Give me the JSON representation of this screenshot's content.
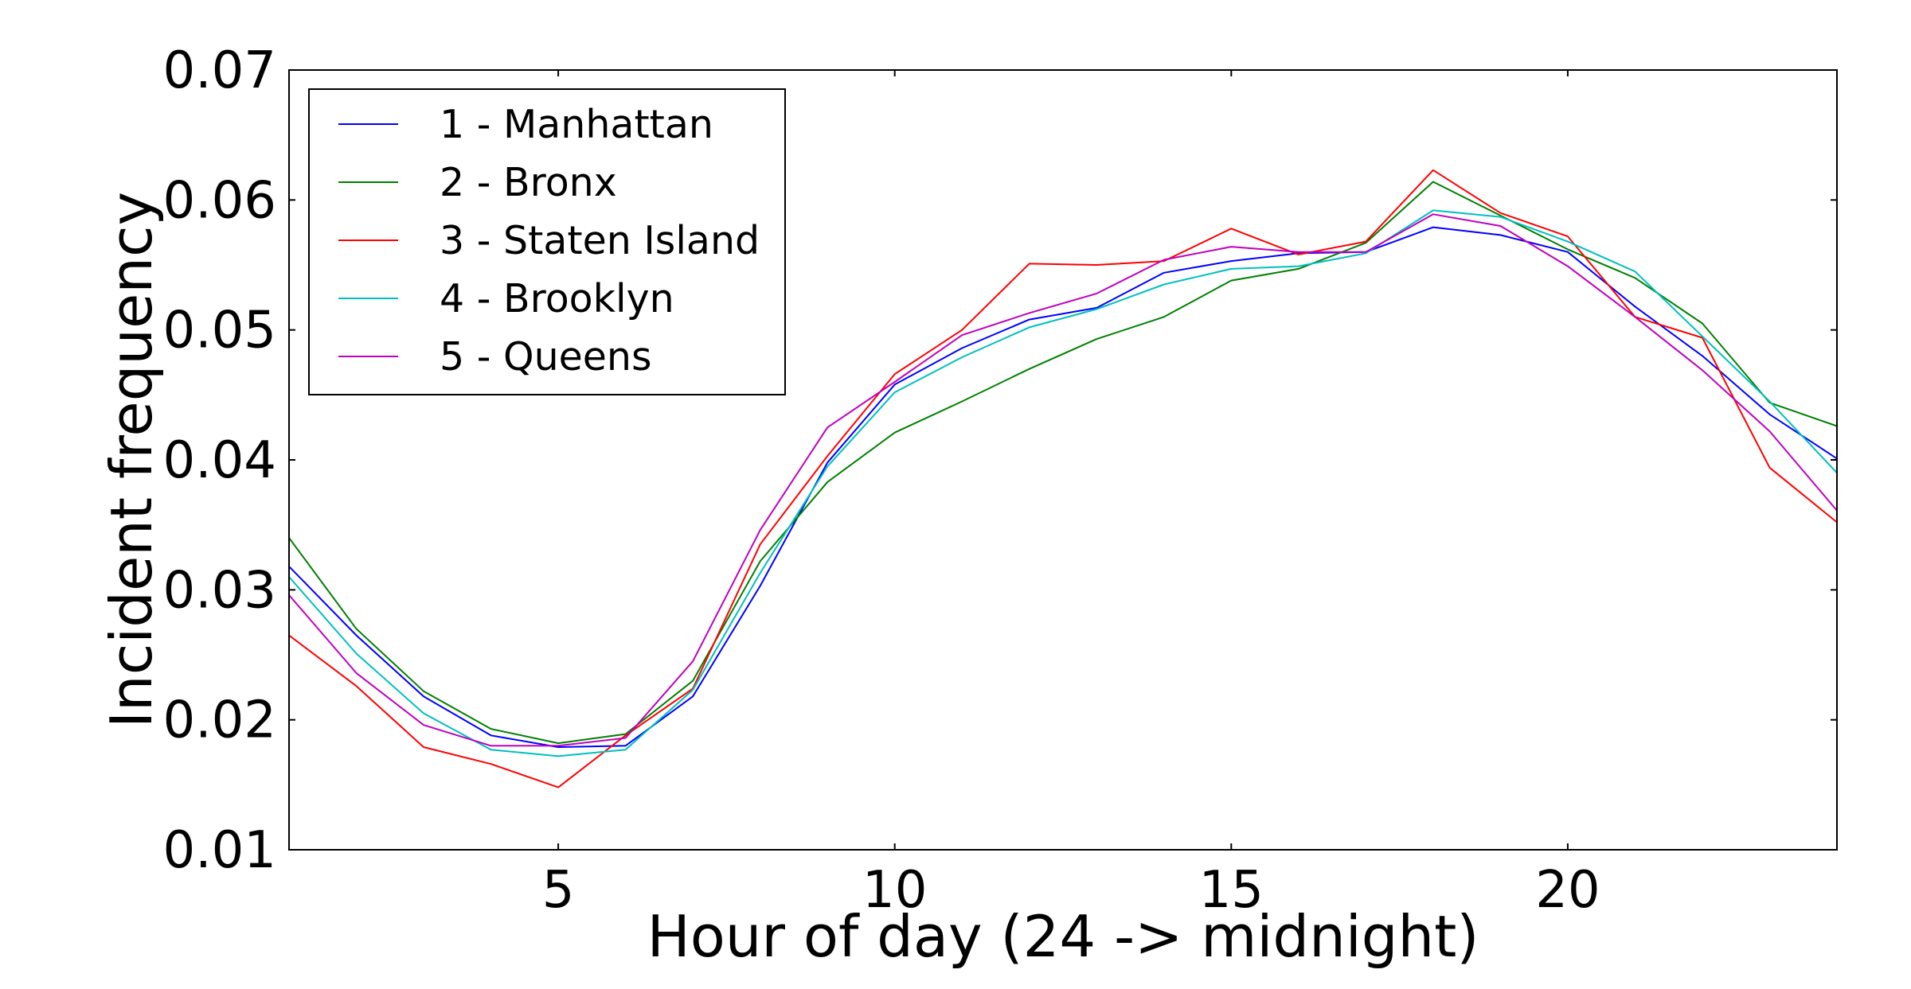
{
  "chart_data": {
    "type": "line",
    "xlabel": "Hour of day (24 -> midnight)",
    "ylabel": "Incident frequency",
    "xlim": [
      1,
      24
    ],
    "ylim": [
      0.01,
      0.07
    ],
    "xticks": [
      5,
      10,
      15,
      20
    ],
    "yticks": [
      0.01,
      0.02,
      0.03,
      0.04,
      0.05,
      0.06,
      0.07
    ],
    "ytick_labels": [
      "0.01",
      "0.02",
      "0.03",
      "0.04",
      "0.05",
      "0.06",
      "0.07"
    ],
    "grid": false,
    "legend_position": "top-left",
    "x": [
      1,
      2,
      3,
      4,
      5,
      6,
      7,
      8,
      9,
      10,
      11,
      12,
      13,
      14,
      15,
      16,
      17,
      18,
      19,
      20,
      21,
      22,
      23,
      24
    ],
    "series": [
      {
        "name": "1 - Manhattan",
        "color": "#0000ff",
        "values": [
          0.0318,
          0.0265,
          0.0218,
          0.0188,
          0.0179,
          0.018,
          0.0218,
          0.0303,
          0.0398,
          0.0458,
          0.0486,
          0.0508,
          0.0517,
          0.0544,
          0.0553,
          0.0559,
          0.056,
          0.0579,
          0.0573,
          0.056,
          0.0518,
          0.048,
          0.0435,
          0.0401
        ]
      },
      {
        "name": "2 - Bronx",
        "color": "#008000",
        "values": [
          0.034,
          0.027,
          0.0222,
          0.0193,
          0.0182,
          0.0189,
          0.023,
          0.0322,
          0.0383,
          0.0421,
          0.0445,
          0.047,
          0.0493,
          0.051,
          0.0538,
          0.0547,
          0.0567,
          0.0614,
          0.0588,
          0.0562,
          0.054,
          0.0505,
          0.0444,
          0.0426
        ]
      },
      {
        "name": "3 - Staten Island",
        "color": "#ff0000",
        "values": [
          0.0265,
          0.0226,
          0.0179,
          0.0166,
          0.0148,
          0.0188,
          0.0224,
          0.0335,
          0.0403,
          0.0466,
          0.05,
          0.0551,
          0.055,
          0.0553,
          0.0578,
          0.0558,
          0.0568,
          0.0623,
          0.059,
          0.0572,
          0.051,
          0.0494,
          0.0394,
          0.0352
        ]
      },
      {
        "name": "4 - Brooklyn",
        "color": "#00bfbf",
        "values": [
          0.031,
          0.0251,
          0.0205,
          0.0177,
          0.0172,
          0.0177,
          0.0223,
          0.0313,
          0.0395,
          0.0452,
          0.0479,
          0.0502,
          0.0516,
          0.0535,
          0.0547,
          0.0549,
          0.0559,
          0.0592,
          0.0587,
          0.0568,
          0.0545,
          0.0495,
          0.0445,
          0.039
        ]
      },
      {
        "name": "5 - Queens",
        "color": "#bf00bf",
        "values": [
          0.0296,
          0.0236,
          0.0196,
          0.018,
          0.018,
          0.0186,
          0.0245,
          0.0346,
          0.0425,
          0.046,
          0.0496,
          0.0513,
          0.0528,
          0.0554,
          0.0564,
          0.056,
          0.056,
          0.0589,
          0.058,
          0.0549,
          0.051,
          0.0469,
          0.0422,
          0.0361
        ]
      }
    ]
  }
}
